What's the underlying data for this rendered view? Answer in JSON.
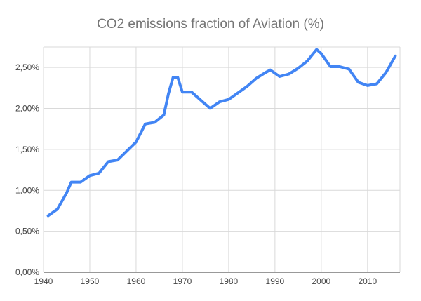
{
  "chart_data": {
    "type": "line",
    "title": "CO2 emissions fraction of Aviation (%)",
    "xlabel": "",
    "ylabel": "",
    "xlim": [
      1940,
      2017
    ],
    "ylim": [
      0,
      2.75
    ],
    "x_ticks": [
      {
        "value": 1940,
        "label": "1940"
      },
      {
        "value": 1950,
        "label": "1950"
      },
      {
        "value": 1960,
        "label": "1960"
      },
      {
        "value": 1970,
        "label": "1970"
      },
      {
        "value": 1980,
        "label": "1980"
      },
      {
        "value": 1990,
        "label": "1990"
      },
      {
        "value": 2000,
        "label": "2000"
      },
      {
        "value": 2010,
        "label": "2010"
      }
    ],
    "y_ticks": [
      {
        "value": 0,
        "label": "0,00%"
      },
      {
        "value": 0.5,
        "label": "0,50%"
      },
      {
        "value": 1.0,
        "label": "1,00%"
      },
      {
        "value": 1.5,
        "label": "1,50%"
      },
      {
        "value": 2.0,
        "label": "2,00%"
      },
      {
        "value": 2.5,
        "label": "2,50%"
      }
    ],
    "grid": true,
    "legend": "none",
    "series": [
      {
        "color": "#4285f4",
        "x": [
          1941,
          1943,
          1945,
          1946,
          1948,
          1950,
          1952,
          1954,
          1956,
          1958,
          1960,
          1962,
          1964,
          1966,
          1967,
          1968,
          1969,
          1970,
          1972,
          1974,
          1976,
          1978,
          1980,
          1982,
          1984,
          1986,
          1988,
          1989,
          1991,
          1993,
          1995,
          1997,
          1999,
          2000,
          2002,
          2004,
          2006,
          2008,
          2010,
          2012,
          2014,
          2016
        ],
        "values": [
          0.69,
          0.77,
          0.97,
          1.1,
          1.1,
          1.18,
          1.21,
          1.35,
          1.37,
          1.48,
          1.59,
          1.81,
          1.83,
          1.92,
          2.18,
          2.38,
          2.38,
          2.2,
          2.2,
          2.1,
          2.0,
          2.08,
          2.11,
          2.19,
          2.27,
          2.37,
          2.44,
          2.47,
          2.39,
          2.42,
          2.49,
          2.58,
          2.72,
          2.67,
          2.51,
          2.51,
          2.48,
          2.32,
          2.28,
          2.3,
          2.44,
          2.64
        ]
      }
    ]
  }
}
